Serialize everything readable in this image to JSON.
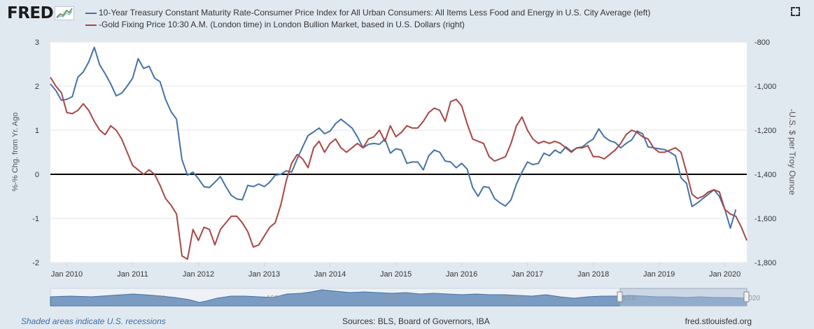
{
  "logo": {
    "text": "FRED"
  },
  "legend": {
    "items": [
      {
        "label": "10-Year Treasury Constant Maturity Rate-Consumer Price Index for All Urban Consumers: All Items Less Food and Energy in U.S. City Average (left)",
        "color": "#4572a7"
      },
      {
        "label": "-Gold Fixing Price 10:30 A.M. (London time) in London Bullion Market, based in U.S. Dollars (right)",
        "color": "#aa4643"
      }
    ]
  },
  "footer": {
    "recessions": "Shaded areas indicate U.S. recessions",
    "sources": "Sources: BLS, Board of Governors, IBA",
    "url": "fred.stlouisfed.org"
  },
  "chart_data": {
    "type": "line",
    "ylabel_left": "%-% Chg. from Yr. Ago",
    "ylabel_right": "-U.S. $ per Troy Ounce",
    "y_left_ticks": [
      "3",
      "2",
      "1",
      "0",
      "-1",
      "-2"
    ],
    "y_right_ticks": [
      "-800",
      "-1,000",
      "-1,200",
      "-1,400",
      "-1,600",
      "-1,800"
    ],
    "ylim_left": [
      -2,
      3
    ],
    "ylim_right": [
      -1800,
      -800
    ],
    "x_ticks": [
      "Jan 2010",
      "Jan 2011",
      "Jan 2012",
      "Jan 2013",
      "Jan 2014",
      "Jan 2015",
      "Jan 2016",
      "Jan 2017",
      "Jan 2018",
      "Jan 2019",
      "Jan 2020"
    ],
    "xlim": [
      "2009-10",
      "2020-05"
    ],
    "navigator_labels": [
      "1970",
      "1980",
      "1990",
      "2000",
      "2010",
      "2020"
    ],
    "zero_line": true,
    "grid": "horizontal",
    "series": [
      {
        "name": "10-Year Treasury Constant Maturity Rate-Consumer Price Index for All Urban Consumers: All Items Less Food and Energy in U.S. City Average (left)",
        "axis": "left",
        "color": "#4572a7",
        "points": [
          [
            "2009-10",
            2.05
          ],
          [
            "2009-11",
            1.9
          ],
          [
            "2009-12",
            1.68
          ],
          [
            "2010-01",
            1.7
          ],
          [
            "2010-02",
            1.76
          ],
          [
            "2010-03",
            2.2
          ],
          [
            "2010-04",
            2.32
          ],
          [
            "2010-05",
            2.55
          ],
          [
            "2010-06",
            2.88
          ],
          [
            "2010-07",
            2.48
          ],
          [
            "2010-08",
            2.28
          ],
          [
            "2010-09",
            2.05
          ],
          [
            "2010-10",
            1.78
          ],
          [
            "2010-11",
            1.84
          ],
          [
            "2010-12",
            2.0
          ],
          [
            "2011-01",
            2.18
          ],
          [
            "2011-02",
            2.62
          ],
          [
            "2011-03",
            2.4
          ],
          [
            "2011-04",
            2.45
          ],
          [
            "2011-05",
            2.18
          ],
          [
            "2011-06",
            2.1
          ],
          [
            "2011-07",
            1.7
          ],
          [
            "2011-08",
            1.42
          ],
          [
            "2011-09",
            1.25
          ],
          [
            "2011-10",
            0.33
          ],
          [
            "2011-11",
            -0.02
          ],
          [
            "2011-12",
            0.05
          ],
          [
            "2012-01",
            -0.1
          ],
          [
            "2012-02",
            -0.28
          ],
          [
            "2012-03",
            -0.3
          ],
          [
            "2012-04",
            -0.18
          ],
          [
            "2012-05",
            -0.05
          ],
          [
            "2012-06",
            -0.28
          ],
          [
            "2012-07",
            -0.48
          ],
          [
            "2012-08",
            -0.56
          ],
          [
            "2012-09",
            -0.58
          ],
          [
            "2012-10",
            -0.25
          ],
          [
            "2012-11",
            -0.28
          ],
          [
            "2012-12",
            -0.22
          ],
          [
            "2013-01",
            -0.28
          ],
          [
            "2013-02",
            -0.18
          ],
          [
            "2013-03",
            -0.02
          ],
          [
            "2013-04",
            0.0
          ],
          [
            "2013-05",
            0.08
          ],
          [
            "2013-06",
            0.05
          ],
          [
            "2013-07",
            0.35
          ],
          [
            "2013-08",
            0.62
          ],
          [
            "2013-09",
            0.88
          ],
          [
            "2013-10",
            0.96
          ],
          [
            "2013-11",
            1.05
          ],
          [
            "2013-12",
            0.92
          ],
          [
            "2014-01",
            0.98
          ],
          [
            "2014-02",
            1.15
          ],
          [
            "2014-03",
            1.25
          ],
          [
            "2014-04",
            1.15
          ],
          [
            "2014-05",
            1.05
          ],
          [
            "2014-06",
            0.85
          ],
          [
            "2014-07",
            0.6
          ],
          [
            "2014-08",
            0.68
          ],
          [
            "2014-09",
            0.7
          ],
          [
            "2014-10",
            0.68
          ],
          [
            "2014-11",
            0.8
          ],
          [
            "2014-12",
            0.48
          ],
          [
            "2015-01",
            0.58
          ],
          [
            "2015-02",
            0.55
          ],
          [
            "2015-03",
            0.25
          ],
          [
            "2015-04",
            0.28
          ],
          [
            "2015-05",
            0.28
          ],
          [
            "2015-06",
            0.1
          ],
          [
            "2015-07",
            0.42
          ],
          [
            "2015-08",
            0.55
          ],
          [
            "2015-09",
            0.5
          ],
          [
            "2015-10",
            0.3
          ],
          [
            "2015-11",
            0.28
          ],
          [
            "2015-12",
            0.15
          ],
          [
            "2016-01",
            0.25
          ],
          [
            "2016-02",
            0.12
          ],
          [
            "2016-03",
            -0.3
          ],
          [
            "2016-04",
            -0.5
          ],
          [
            "2016-05",
            -0.28
          ],
          [
            "2016-06",
            -0.3
          ],
          [
            "2016-07",
            -0.55
          ],
          [
            "2016-08",
            -0.65
          ],
          [
            "2016-09",
            -0.72
          ],
          [
            "2016-10",
            -0.58
          ],
          [
            "2016-11",
            -0.22
          ],
          [
            "2016-12",
            0.05
          ],
          [
            "2017-01",
            0.28
          ],
          [
            "2017-02",
            0.22
          ],
          [
            "2017-03",
            0.25
          ],
          [
            "2017-04",
            0.48
          ],
          [
            "2017-05",
            0.42
          ],
          [
            "2017-06",
            0.55
          ],
          [
            "2017-07",
            0.48
          ],
          [
            "2017-08",
            0.62
          ],
          [
            "2017-09",
            0.52
          ],
          [
            "2017-10",
            0.6
          ],
          [
            "2017-11",
            0.62
          ],
          [
            "2017-12",
            0.72
          ],
          [
            "2018-01",
            0.8
          ],
          [
            "2018-02",
            1.03
          ],
          [
            "2018-03",
            0.85
          ],
          [
            "2018-04",
            0.76
          ],
          [
            "2018-05",
            0.72
          ],
          [
            "2018-06",
            0.6
          ],
          [
            "2018-07",
            0.7
          ],
          [
            "2018-08",
            0.78
          ],
          [
            "2018-09",
            0.98
          ],
          [
            "2018-10",
            0.92
          ],
          [
            "2018-11",
            0.62
          ],
          [
            "2018-12",
            0.6
          ],
          [
            "2019-01",
            0.58
          ],
          [
            "2019-02",
            0.56
          ],
          [
            "2019-03",
            0.5
          ],
          [
            "2019-04",
            0.42
          ],
          [
            "2019-05",
            -0.08
          ],
          [
            "2019-06",
            -0.2
          ],
          [
            "2019-07",
            -0.73
          ],
          [
            "2019-08",
            -0.65
          ],
          [
            "2019-09",
            -0.55
          ],
          [
            "2019-10",
            -0.45
          ],
          [
            "2019-11",
            -0.35
          ],
          [
            "2019-12",
            -0.5
          ],
          [
            "2020-01",
            -0.8
          ],
          [
            "2020-02",
            -1.22
          ],
          [
            "2020-03",
            -0.8
          ]
        ]
      },
      {
        "name": "-Gold Fixing Price 10:30 A.M. (London time) in London Bullion Market, based in U.S. Dollars (right)",
        "axis": "right",
        "color": "#aa4643",
        "points": [
          [
            "2009-10",
            -960
          ],
          [
            "2009-11",
            -1000
          ],
          [
            "2009-12",
            -1030
          ],
          [
            "2010-01",
            -1120
          ],
          [
            "2010-02",
            -1125
          ],
          [
            "2010-03",
            -1110
          ],
          [
            "2010-04",
            -1080
          ],
          [
            "2010-05",
            -1110
          ],
          [
            "2010-06",
            -1160
          ],
          [
            "2010-07",
            -1200
          ],
          [
            "2010-08",
            -1220
          ],
          [
            "2010-09",
            -1180
          ],
          [
            "2010-10",
            -1200
          ],
          [
            "2010-11",
            -1240
          ],
          [
            "2010-12",
            -1300
          ],
          [
            "2011-01",
            -1360
          ],
          [
            "2011-02",
            -1380
          ],
          [
            "2011-03",
            -1400
          ],
          [
            "2011-04",
            -1380
          ],
          [
            "2011-05",
            -1400
          ],
          [
            "2011-06",
            -1450
          ],
          [
            "2011-07",
            -1510
          ],
          [
            "2011-08",
            -1540
          ],
          [
            "2011-09",
            -1580
          ],
          [
            "2011-10",
            -1770
          ],
          [
            "2011-11",
            -1785
          ],
          [
            "2011-12",
            -1650
          ],
          [
            "2012-01",
            -1700
          ],
          [
            "2012-02",
            -1640
          ],
          [
            "2012-03",
            -1650
          ],
          [
            "2012-04",
            -1720
          ],
          [
            "2012-05",
            -1650
          ],
          [
            "2012-06",
            -1620
          ],
          [
            "2012-07",
            -1590
          ],
          [
            "2012-08",
            -1590
          ],
          [
            "2012-09",
            -1620
          ],
          [
            "2012-10",
            -1660
          ],
          [
            "2012-11",
            -1730
          ],
          [
            "2012-12",
            -1720
          ],
          [
            "2013-01",
            -1680
          ],
          [
            "2013-02",
            -1640
          ],
          [
            "2013-03",
            -1620
          ],
          [
            "2013-04",
            -1540
          ],
          [
            "2013-05",
            -1430
          ],
          [
            "2013-06",
            -1350
          ],
          [
            "2013-07",
            -1310
          ],
          [
            "2013-08",
            -1330
          ],
          [
            "2013-09",
            -1370
          ],
          [
            "2013-10",
            -1280
          ],
          [
            "2013-11",
            -1250
          ],
          [
            "2013-12",
            -1300
          ],
          [
            "2014-01",
            -1260
          ],
          [
            "2014-02",
            -1240
          ],
          [
            "2014-03",
            -1280
          ],
          [
            "2014-04",
            -1300
          ],
          [
            "2014-05",
            -1280
          ],
          [
            "2014-06",
            -1260
          ],
          [
            "2014-07",
            -1280
          ],
          [
            "2014-08",
            -1240
          ],
          [
            "2014-09",
            -1230
          ],
          [
            "2014-10",
            -1200
          ],
          [
            "2014-11",
            -1250
          ],
          [
            "2014-12",
            -1180
          ],
          [
            "2015-01",
            -1230
          ],
          [
            "2015-02",
            -1210
          ],
          [
            "2015-03",
            -1180
          ],
          [
            "2015-04",
            -1190
          ],
          [
            "2015-05",
            -1190
          ],
          [
            "2015-06",
            -1160
          ],
          [
            "2015-07",
            -1120
          ],
          [
            "2015-08",
            -1100
          ],
          [
            "2015-09",
            -1110
          ],
          [
            "2015-10",
            -1160
          ],
          [
            "2015-11",
            -1070
          ],
          [
            "2015-12",
            -1060
          ],
          [
            "2016-01",
            -1090
          ],
          [
            "2016-02",
            -1170
          ],
          [
            "2016-03",
            -1240
          ],
          [
            "2016-04",
            -1250
          ],
          [
            "2016-05",
            -1260
          ],
          [
            "2016-06",
            -1320
          ],
          [
            "2016-07",
            -1340
          ],
          [
            "2016-08",
            -1330
          ],
          [
            "2016-09",
            -1320
          ],
          [
            "2016-10",
            -1260
          ],
          [
            "2016-11",
            -1180
          ],
          [
            "2016-12",
            -1140
          ],
          [
            "2017-01",
            -1200
          ],
          [
            "2017-02",
            -1240
          ],
          [
            "2017-03",
            -1260
          ],
          [
            "2017-04",
            -1250
          ],
          [
            "2017-05",
            -1260
          ],
          [
            "2017-06",
            -1250
          ],
          [
            "2017-07",
            -1260
          ],
          [
            "2017-08",
            -1280
          ],
          [
            "2017-09",
            -1300
          ],
          [
            "2017-10",
            -1280
          ],
          [
            "2017-11",
            -1280
          ],
          [
            "2017-12",
            -1270
          ],
          [
            "2018-01",
            -1320
          ],
          [
            "2018-02",
            -1320
          ],
          [
            "2018-03",
            -1330
          ],
          [
            "2018-04",
            -1310
          ],
          [
            "2018-05",
            -1290
          ],
          [
            "2018-06",
            -1260
          ],
          [
            "2018-07",
            -1220
          ],
          [
            "2018-08",
            -1200
          ],
          [
            "2018-09",
            -1210
          ],
          [
            "2018-10",
            -1230
          ],
          [
            "2018-11",
            -1240
          ],
          [
            "2018-12",
            -1280
          ],
          [
            "2019-01",
            -1300
          ],
          [
            "2019-02",
            -1300
          ],
          [
            "2019-03",
            -1290
          ],
          [
            "2019-04",
            -1280
          ],
          [
            "2019-05",
            -1300
          ],
          [
            "2019-06",
            -1390
          ],
          [
            "2019-07",
            -1490
          ],
          [
            "2019-08",
            -1510
          ],
          [
            "2019-09",
            -1500
          ],
          [
            "2019-10",
            -1480
          ],
          [
            "2019-11",
            -1470
          ],
          [
            "2019-12",
            -1480
          ],
          [
            "2020-01",
            -1560
          ],
          [
            "2020-02",
            -1580
          ],
          [
            "2020-03",
            -1590
          ],
          [
            "2020-04",
            -1640
          ],
          [
            "2020-05",
            -1700
          ]
        ]
      }
    ]
  }
}
